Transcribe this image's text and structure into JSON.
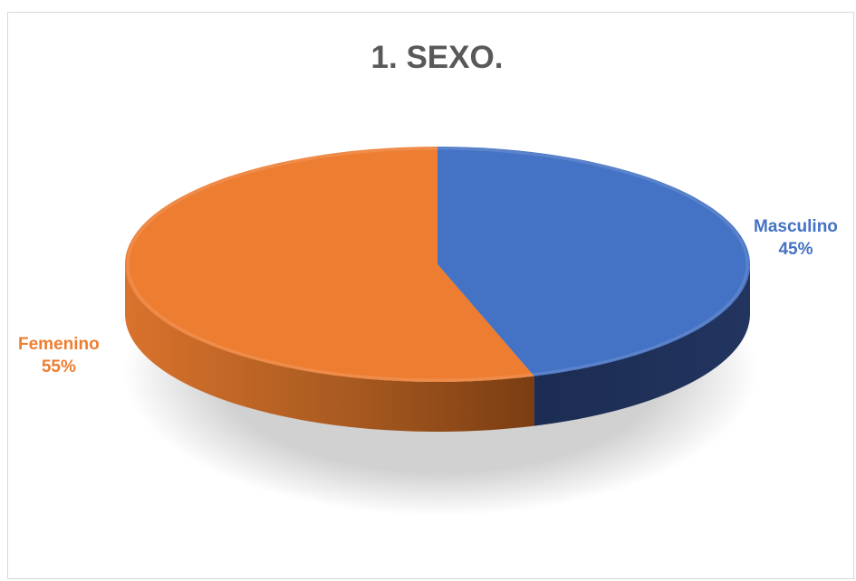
{
  "chart_data": {
    "type": "pie",
    "title": "1. SEXO.",
    "slices": [
      {
        "label": "Masculino",
        "value": 45,
        "pct_text": "45%",
        "color": "#4472c4",
        "side_color": "#1f3058"
      },
      {
        "label": "Femenino",
        "value": 55,
        "pct_text": "55%",
        "color": "#ed7d31",
        "side_color": "#8a4718"
      }
    ],
    "style": "3d-tilted"
  }
}
